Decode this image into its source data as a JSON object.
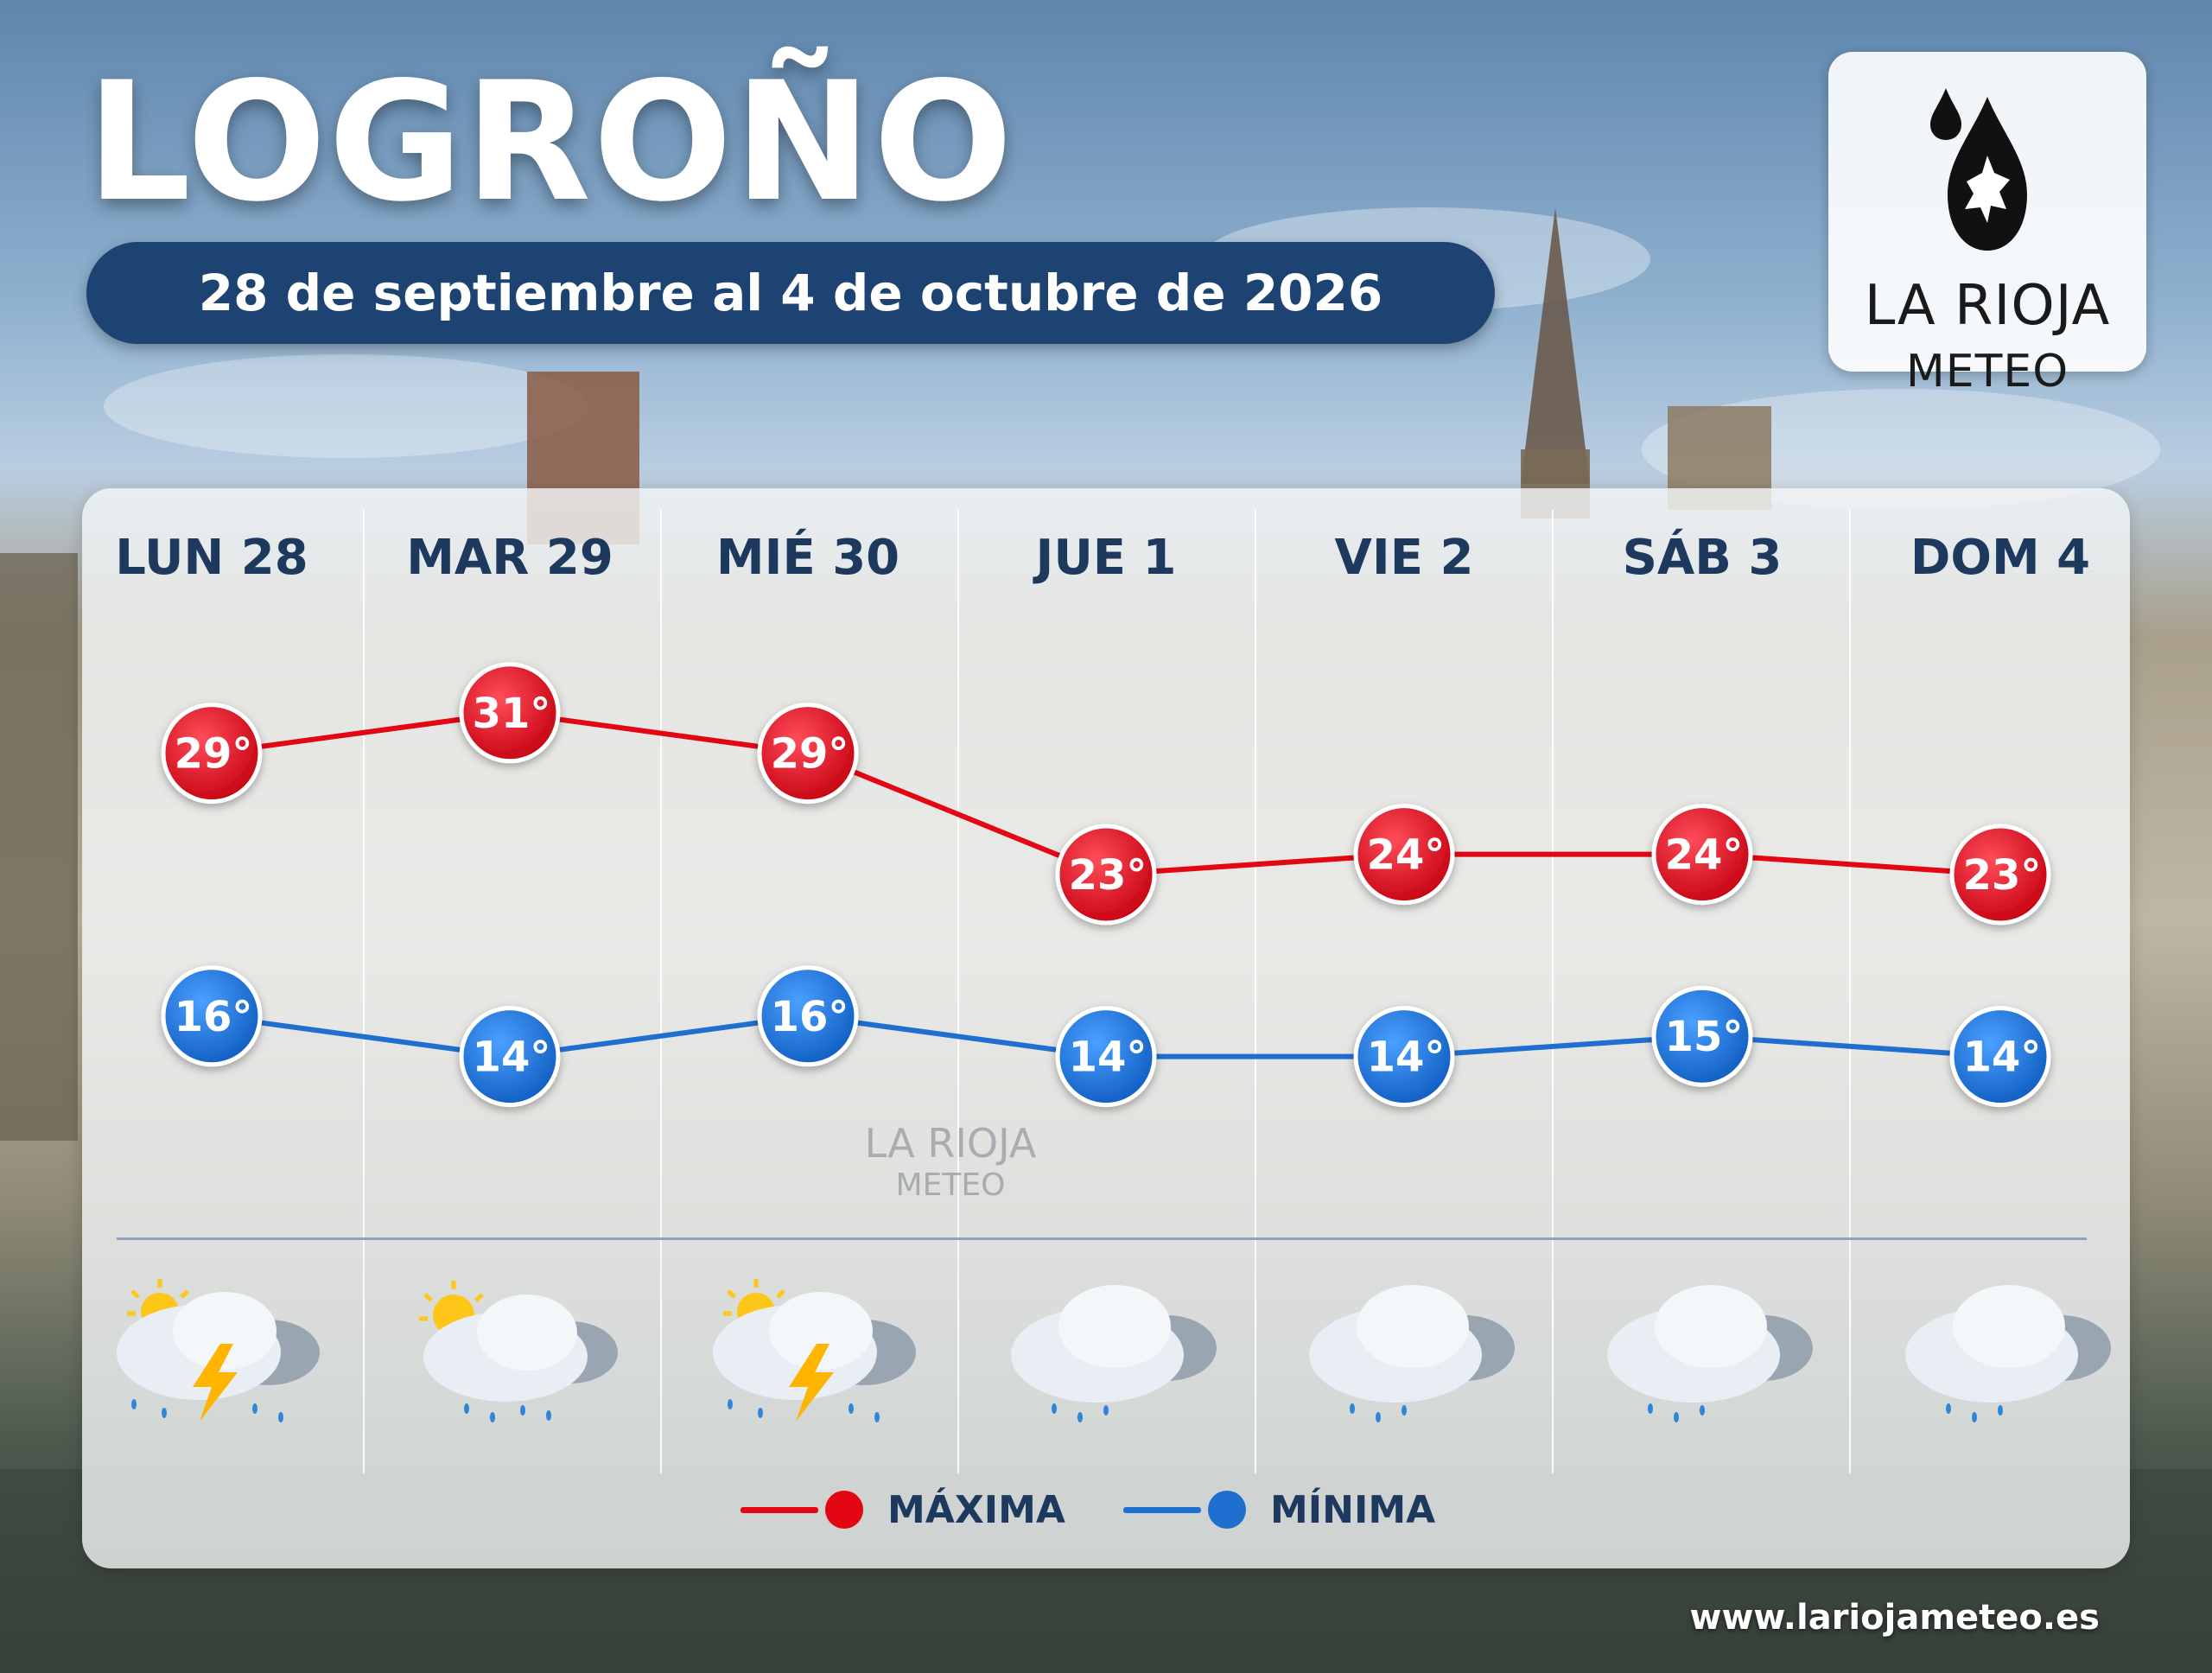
{
  "city_title": "LOGROÑO",
  "date_range": "28 de septiembre al 4 de octubre de 2026",
  "logo": {
    "line1": "LA RIOJA",
    "line2": "METEO"
  },
  "watermark": {
    "line1": "LA RIOJA",
    "line2": "METEO"
  },
  "website": "www.lariojameteo.es",
  "colors": {
    "max": "#e30613",
    "min": "#1e6fd0",
    "navy": "#1d4373"
  },
  "days": [
    {
      "label": "LUN 28",
      "icon": "thunderstorm-rain-sun-icon"
    },
    {
      "label": "MAR 29",
      "icon": "partly-sunny-rain-icon"
    },
    {
      "label": "MIÉ 30",
      "icon": "thunderstorm-rain-sun-icon"
    },
    {
      "label": "JUE 1",
      "icon": "cloudy-rain-icon"
    },
    {
      "label": "VIE 2",
      "icon": "cloudy-rain-icon"
    },
    {
      "label": "SÁB 3",
      "icon": "cloudy-rain-icon"
    },
    {
      "label": "DOM 4",
      "icon": "cloudy-rain-icon"
    }
  ],
  "legend": {
    "max_label": "MÁXIMA",
    "min_label": "MÍNIMA"
  },
  "chart_data": {
    "type": "line",
    "categories": [
      "LUN 28",
      "MAR 29",
      "MIÉ 30",
      "JUE 1",
      "VIE 2",
      "SÁB 3",
      "DOM 4"
    ],
    "series": [
      {
        "name": "MÁXIMA",
        "values": [
          29,
          31,
          29,
          23,
          24,
          24,
          23
        ],
        "labels": [
          "29°",
          "31°",
          "29°",
          "23°",
          "24°",
          "24°",
          "23°"
        ],
        "color": "#e30613"
      },
      {
        "name": "MÍNIMA",
        "values": [
          16,
          14,
          16,
          14,
          14,
          15,
          14
        ],
        "labels": [
          "16°",
          "14°",
          "16°",
          "14°",
          "14°",
          "15°",
          "14°"
        ],
        "color": "#1e6fd0"
      }
    ],
    "unit": "°"
  }
}
